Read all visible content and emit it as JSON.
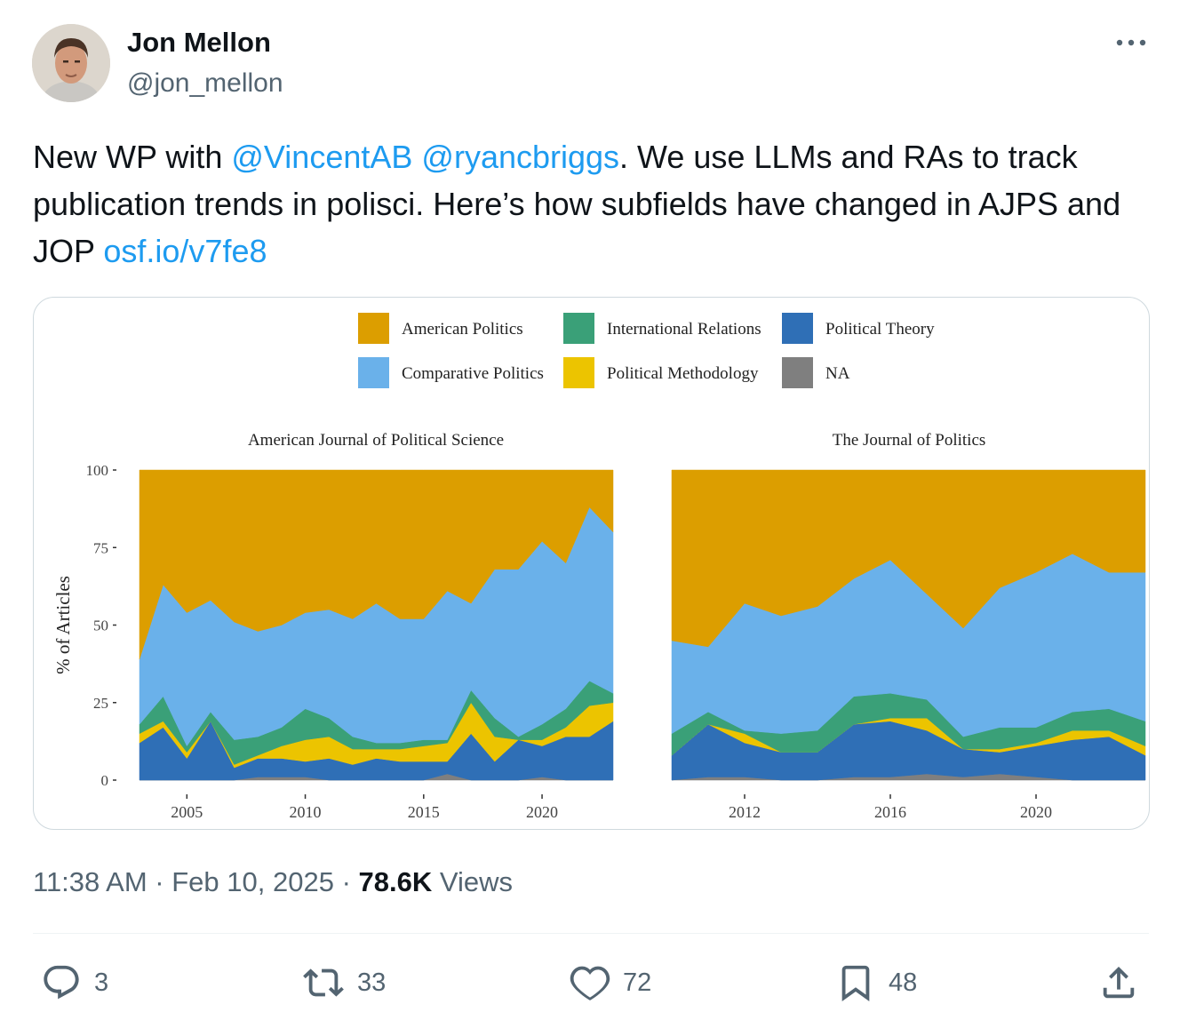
{
  "author": {
    "name": "Jon Mellon",
    "handle": "@jon_mellon"
  },
  "tweet": {
    "text_part1": "New WP with ",
    "mention1": "@VincentAB",
    "space": " ",
    "mention2": "@ryancbriggs",
    "text_part2": ". We use LLMs and RAs to track publication trends in polisci. Here’s how subfields have changed in AJPS and JOP ",
    "link": "osf.io/v7fe8"
  },
  "meta": {
    "time": "11:38 AM",
    "sep1": " · ",
    "date": "Feb 10, 2025",
    "sep2": " · ",
    "views_count": "78.6K",
    "views_label": " Views"
  },
  "actions": {
    "replies": "3",
    "reposts": "33",
    "likes": "72",
    "bookmarks": "48"
  },
  "icons": {
    "more": "more-dots-icon",
    "reply": "reply-icon",
    "repost": "repost-icon",
    "like": "heart-icon",
    "bookmark": "bookmark-icon",
    "share": "share-icon"
  },
  "colors": {
    "link": "#1d9bf0",
    "American Politics": "#dc9e00",
    "Comparative Politics": "#6ab1ea",
    "International Relations": "#3aa078",
    "Political Methodology": "#ecc400",
    "Political Theory": "#2f6fb6",
    "NA": "#7f7f7f"
  },
  "chart_data": [
    {
      "type": "area",
      "stacked": true,
      "title": "American Journal of Political Science",
      "ylabel": "% of Articles",
      "xlabel": "",
      "x": [
        2003,
        2004,
        2005,
        2006,
        2007,
        2008,
        2009,
        2010,
        2011,
        2012,
        2013,
        2014,
        2015,
        2016,
        2017,
        2018,
        2019,
        2020,
        2021,
        2022,
        2023
      ],
      "xlim": [
        2003,
        2023
      ],
      "xticks": [
        2005,
        2010,
        2015,
        2020
      ],
      "ylim": [
        0,
        100
      ],
      "yticks": [
        0,
        25,
        50,
        75,
        100
      ],
      "series": [
        {
          "name": "NA",
          "values": [
            0,
            0,
            0,
            0,
            0,
            1,
            1,
            1,
            0,
            0,
            0,
            0,
            0,
            2,
            0,
            0,
            0,
            1,
            0,
            0,
            0
          ]
        },
        {
          "name": "Political Theory",
          "values": [
            12,
            17,
            7,
            19,
            4,
            6,
            6,
            5,
            7,
            5,
            7,
            6,
            6,
            4,
            15,
            6,
            13,
            10,
            14,
            14,
            19
          ]
        },
        {
          "name": "Political Methodology",
          "values": [
            3,
            2,
            2,
            0,
            1,
            1,
            4,
            7,
            7,
            5,
            3,
            4,
            5,
            6,
            10,
            8,
            0,
            2,
            3,
            10,
            6
          ]
        },
        {
          "name": "International Relations",
          "values": [
            3,
            8,
            2,
            3,
            8,
            6,
            6,
            10,
            6,
            4,
            2,
            2,
            2,
            1,
            4,
            6,
            1,
            5,
            6,
            8,
            3
          ]
        },
        {
          "name": "Comparative Politics",
          "values": [
            21,
            36,
            43,
            36,
            38,
            34,
            33,
            31,
            35,
            38,
            45,
            40,
            39,
            48,
            28,
            48,
            54,
            59,
            47,
            56,
            52
          ]
        },
        {
          "name": "American Politics",
          "values": [
            61,
            37,
            46,
            42,
            49,
            52,
            50,
            46,
            45,
            48,
            43,
            48,
            48,
            39,
            43,
            32,
            32,
            23,
            30,
            12,
            20
          ]
        }
      ],
      "legend": "top"
    },
    {
      "type": "area",
      "stacked": true,
      "title": "The Journal of Politics",
      "ylabel": "",
      "xlabel": "",
      "x": [
        2010,
        2011,
        2012,
        2013,
        2014,
        2015,
        2016,
        2017,
        2018,
        2019,
        2020,
        2021,
        2022,
        2023
      ],
      "xlim": [
        2010,
        2023
      ],
      "xticks": [
        2012,
        2016,
        2020
      ],
      "ylim": [
        0,
        100
      ],
      "yticks": [
        0,
        25,
        50,
        75,
        100
      ],
      "series": [
        {
          "name": "NA",
          "values": [
            0,
            1,
            1,
            0,
            0,
            1,
            1,
            2,
            1,
            2,
            1,
            0,
            0,
            0
          ]
        },
        {
          "name": "Political Theory",
          "values": [
            8,
            17,
            11,
            9,
            9,
            17,
            18,
            14,
            9,
            7,
            10,
            13,
            14,
            8
          ]
        },
        {
          "name": "Political Methodology",
          "values": [
            0,
            0,
            3,
            0,
            0,
            0,
            1,
            4,
            0,
            1,
            1,
            3,
            2,
            3
          ]
        },
        {
          "name": "International Relations",
          "values": [
            7,
            4,
            1,
            6,
            7,
            9,
            8,
            6,
            4,
            7,
            5,
            6,
            7,
            8
          ]
        },
        {
          "name": "Comparative Politics",
          "values": [
            30,
            21,
            41,
            38,
            40,
            38,
            43,
            34,
            35,
            45,
            50,
            51,
            44,
            48
          ]
        },
        {
          "name": "American Politics",
          "values": [
            55,
            57,
            43,
            47,
            44,
            35,
            29,
            40,
            51,
            38,
            33,
            27,
            33,
            33
          ]
        }
      ]
    }
  ],
  "legend_items": [
    "American Politics",
    "International Relations",
    "Political Theory",
    "Comparative Politics",
    "Political Methodology",
    "NA"
  ]
}
